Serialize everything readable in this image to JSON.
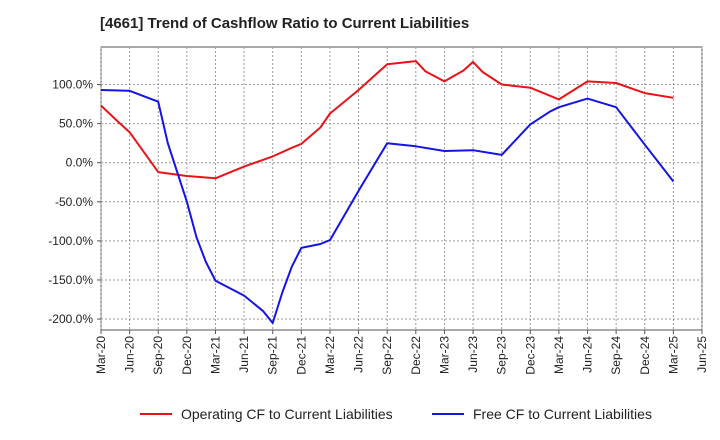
{
  "chart_data": {
    "type": "line",
    "title": "[4661]  Trend of Cashflow Ratio to Current Liabilities",
    "xlabel": "",
    "ylabel": "",
    "x_ticks": [
      "Mar-20",
      "Jun-20",
      "Sep-20",
      "Dec-20",
      "Mar-21",
      "Jun-21",
      "Sep-21",
      "Dec-21",
      "Mar-22",
      "Jun-22",
      "Sep-22",
      "Dec-22",
      "Mar-23",
      "Jun-23",
      "Sep-23",
      "Dec-23",
      "Mar-24",
      "Jun-24",
      "Sep-24",
      "Dec-24",
      "Mar-25",
      "Jun-25"
    ],
    "y_ticks": [
      100,
      50,
      0,
      -50,
      -100,
      -150,
      -200
    ],
    "y_tick_labels": [
      "100.0%",
      "50.0%",
      "0.0%",
      "-50.0%",
      "-100.0%",
      "-150.0%",
      "-200.0%"
    ],
    "ylim": [
      -214,
      148
    ],
    "grid": true,
    "legend_position": "bottom",
    "series": [
      {
        "name": "Operating CF to Current Liabilities",
        "color": "#e8141a",
        "x": [
          "Mar-20",
          "May-20",
          "Jun-20",
          "Sep-20",
          "Dec-20",
          "Mar-21",
          "Jun-21",
          "Sep-21",
          "Nov-21",
          "Dec-21",
          "Feb-22",
          "Mar-22",
          "Jun-22",
          "Sep-22",
          "Dec-22",
          "Jan-23",
          "Mar-23",
          "May-23",
          "Jun-23",
          "Jul-23",
          "Sep-23",
          "Dec-23",
          "Mar-24",
          "Jun-24",
          "Sep-24",
          "Dec-24",
          "Mar-25"
        ],
        "values": [
          73,
          50,
          39,
          -12,
          -17,
          -20,
          -5,
          8,
          19,
          24,
          45,
          63,
          93,
          126,
          130,
          117,
          104,
          118,
          129,
          116,
          100,
          96,
          81,
          104,
          102,
          89,
          83
        ]
      },
      {
        "name": "Free CF to Current Liabilities",
        "color": "#1414e6",
        "x": [
          "Mar-20",
          "Jun-20",
          "Sep-20",
          "Oct-20",
          "Dec-20",
          "Jan-21",
          "Feb-21",
          "Mar-21",
          "Jun-21",
          "Aug-21",
          "Sep-21",
          "Oct-21",
          "Nov-21",
          "Dec-21",
          "Feb-22",
          "Mar-22",
          "Jun-22",
          "Sep-22",
          "Dec-22",
          "Mar-23",
          "Jun-23",
          "Sep-23",
          "Dec-23",
          "Feb-24",
          "Mar-24",
          "Jun-24",
          "Sep-24",
          "Dec-24",
          "Mar-25"
        ],
        "values": [
          93,
          92,
          78,
          25,
          -50,
          -95,
          -127,
          -151,
          -170,
          -190,
          -205,
          -166,
          -133,
          -109,
          -104,
          -99,
          -36,
          25,
          21,
          15,
          16,
          10,
          49,
          65,
          71,
          82,
          71,
          23,
          -24
        ]
      }
    ]
  }
}
